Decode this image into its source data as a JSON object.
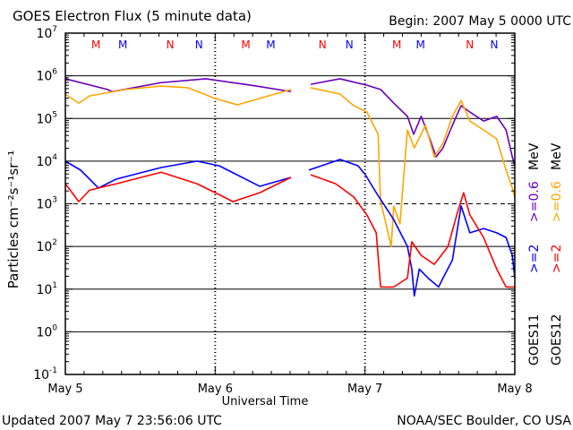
{
  "chart_data": {
    "type": "line",
    "title": "GOES Electron Flux (5 minute data)",
    "begin": "Begin: 2007 May 5 0000 UTC",
    "xlabel": "Universal Time",
    "ylabel": "Particles cm⁻²s⁻¹sr⁻¹",
    "xlim_hours": [
      0,
      72
    ],
    "ylim_log10": [
      -1,
      7
    ],
    "x_ticks": [
      {
        "h": 0,
        "label": "May 5"
      },
      {
        "h": 24,
        "label": "May 6"
      },
      {
        "h": 48,
        "label": "May 7"
      },
      {
        "h": 72,
        "label": "May 8"
      }
    ],
    "y_ticks": [
      {
        "exp": 7,
        "label": "7"
      },
      {
        "exp": 6,
        "label": "6"
      },
      {
        "exp": 5,
        "label": "5"
      },
      {
        "exp": 4,
        "label": "4"
      },
      {
        "exp": 3,
        "label": "3"
      },
      {
        "exp": 2,
        "label": "2"
      },
      {
        "exp": 1,
        "label": "1"
      },
      {
        "exp": 0,
        "label": "0"
      },
      {
        "exp": -1,
        "label": "-1"
      }
    ],
    "y_tick_base": "10",
    "grid_solid_exp": [
      6,
      5,
      4,
      2,
      1,
      0
    ],
    "grid_dashed_exp": [
      3
    ],
    "markers": [
      {
        "h": 4.9,
        "label": "M",
        "color": "#ff0000"
      },
      {
        "h": 9.2,
        "label": "M",
        "color": "#0000ff"
      },
      {
        "h": 16.8,
        "label": "N",
        "color": "#ff0000"
      },
      {
        "h": 21.4,
        "label": "N",
        "color": "#0000ff"
      },
      {
        "h": 28.9,
        "label": "M",
        "color": "#ff0000"
      },
      {
        "h": 32.9,
        "label": "M",
        "color": "#0000ff"
      },
      {
        "h": 41.2,
        "label": "N",
        "color": "#ff0000"
      },
      {
        "h": 45.5,
        "label": "N",
        "color": "#0000ff"
      },
      {
        "h": 53.1,
        "label": "M",
        "color": "#ff0000"
      },
      {
        "h": 56.9,
        "label": "M",
        "color": "#0000ff"
      },
      {
        "h": 64.8,
        "label": "N",
        "color": "#ff0000"
      },
      {
        "h": 68.7,
        "label": "N",
        "color": "#0000ff"
      }
    ],
    "legend": {
      "goes11": {
        "label": "GOES11",
        "e2": ">=2",
        "e06": ">=0.6",
        "unit": "MeV"
      },
      "goes12": {
        "label": "GOES12",
        "e2": ">=2",
        "e06": ">=0.6",
        "unit": "MeV"
      }
    },
    "series": [
      {
        "name": "GOES11 >=0.6 MeV",
        "color": "#6600bb",
        "segments": [
          [
            [
              0,
              5.93
            ],
            [
              6.74,
              5.68
            ],
            [
              7.46,
              5.63
            ],
            [
              15.35,
              5.84
            ],
            [
              22.52,
              5.93
            ],
            [
              29.7,
              5.78
            ],
            [
              36.15,
              5.63
            ]
          ],
          [
            [
              39.3,
              5.8
            ],
            [
              44.0,
              5.93
            ],
            [
              48.3,
              5.78
            ],
            [
              50.5,
              5.68
            ],
            [
              52.6,
              5.36
            ],
            [
              54.8,
              5.05
            ],
            [
              55.8,
              4.63
            ],
            [
              57.0,
              5.05
            ],
            [
              58.4,
              4.52
            ],
            [
              59.4,
              4.1
            ],
            [
              60.5,
              4.31
            ],
            [
              62.0,
              4.84
            ],
            [
              63.4,
              5.3
            ],
            [
              64.8,
              5.15
            ],
            [
              67.0,
              4.94
            ],
            [
              69.1,
              5.05
            ],
            [
              70.6,
              4.73
            ],
            [
              71.6,
              4.1
            ],
            [
              72,
              3.89
            ]
          ]
        ]
      },
      {
        "name": "GOES12 >=0.6 MeV",
        "color": "#ffa500",
        "segments": [
          [
            [
              0,
              5.57
            ],
            [
              2.15,
              5.36
            ],
            [
              3.87,
              5.53
            ],
            [
              9.61,
              5.68
            ],
            [
              15.35,
              5.76
            ],
            [
              19.65,
              5.72
            ],
            [
              23.96,
              5.47
            ],
            [
              27.54,
              5.32
            ],
            [
              31.13,
              5.47
            ],
            [
              36.15,
              5.68
            ]
          ],
          [
            [
              39.3,
              5.72
            ],
            [
              44.0,
              5.57
            ],
            [
              46.2,
              5.3
            ],
            [
              48.3,
              5.15
            ],
            [
              50.1,
              4.63
            ],
            [
              50.5,
              3.05
            ],
            [
              51.2,
              2.63
            ],
            [
              52.2,
              2.0
            ],
            [
              52.6,
              2.95
            ],
            [
              53.6,
              2.53
            ],
            [
              54.8,
              4.73
            ],
            [
              55.9,
              4.31
            ],
            [
              57.7,
              4.84
            ],
            [
              59.1,
              4.1
            ],
            [
              60.5,
              4.42
            ],
            [
              62.0,
              5.05
            ],
            [
              63.4,
              5.42
            ],
            [
              64.8,
              4.94
            ],
            [
              67.0,
              4.73
            ],
            [
              69.1,
              4.52
            ],
            [
              70.6,
              3.79
            ],
            [
              71.6,
              3.37
            ],
            [
              72,
              3.16
            ]
          ]
        ]
      },
      {
        "name": "GOES11 >=2 MeV",
        "color": "#0000ff",
        "segments": [
          [
            [
              0,
              4.0
            ],
            [
              2.44,
              3.79
            ],
            [
              5.31,
              3.37
            ],
            [
              8.18,
              3.58
            ],
            [
              15.35,
              3.85
            ],
            [
              21.09,
              4.0
            ],
            [
              24.67,
              3.89
            ],
            [
              31.13,
              3.41
            ],
            [
              36.15,
              3.62
            ]
          ],
          [
            [
              39.0,
              3.79
            ],
            [
              44.0,
              4.04
            ],
            [
              46.9,
              3.89
            ],
            [
              48.06,
              3.68
            ],
            [
              49.8,
              3.26
            ],
            [
              52.6,
              2.63
            ],
            [
              54.8,
              2.0
            ],
            [
              55.5,
              1.47
            ],
            [
              55.9,
              0.84
            ],
            [
              56.7,
              1.47
            ],
            [
              58.1,
              1.26
            ],
            [
              59.8,
              1.05
            ],
            [
              60.5,
              1.26
            ],
            [
              62.0,
              1.68
            ],
            [
              63.4,
              2.95
            ],
            [
              64.8,
              2.32
            ],
            [
              67.0,
              2.42
            ],
            [
              69.1,
              2.32
            ],
            [
              70.6,
              2.21
            ],
            [
              71.6,
              1.79
            ],
            [
              72,
              1.26
            ]
          ]
        ]
      },
      {
        "name": "GOES12 >=2 MeV",
        "color": "#ff0000",
        "segments": [
          [
            [
              0,
              3.47
            ],
            [
              2.15,
              3.05
            ],
            [
              3.87,
              3.32
            ],
            [
              8.18,
              3.47
            ],
            [
              15.35,
              3.74
            ],
            [
              21.09,
              3.47
            ],
            [
              25.39,
              3.16
            ],
            [
              26.83,
              3.05
            ],
            [
              31.13,
              3.26
            ],
            [
              36.15,
              3.62
            ]
          ],
          [
            [
              39.3,
              3.68
            ],
            [
              43.3,
              3.47
            ],
            [
              46.2,
              3.16
            ],
            [
              48.3,
              2.74
            ],
            [
              49.8,
              2.32
            ],
            [
              50.5,
              1.05
            ],
            [
              52.6,
              1.05
            ],
            [
              54.8,
              1.26
            ],
            [
              55.5,
              2.11
            ],
            [
              57.0,
              1.79
            ],
            [
              59.1,
              1.58
            ],
            [
              61.3,
              2.0
            ],
            [
              62.7,
              2.74
            ],
            [
              63.8,
              3.26
            ],
            [
              64.8,
              2.74
            ],
            [
              67.0,
              2.21
            ],
            [
              69.1,
              1.47
            ],
            [
              70.6,
              1.05
            ],
            [
              72,
              1.05
            ]
          ]
        ]
      }
    ]
  },
  "footer": {
    "updated": "Updated 2007 May  7 23:56:06 UTC",
    "source": "NOAA/SEC Boulder, CO USA"
  }
}
